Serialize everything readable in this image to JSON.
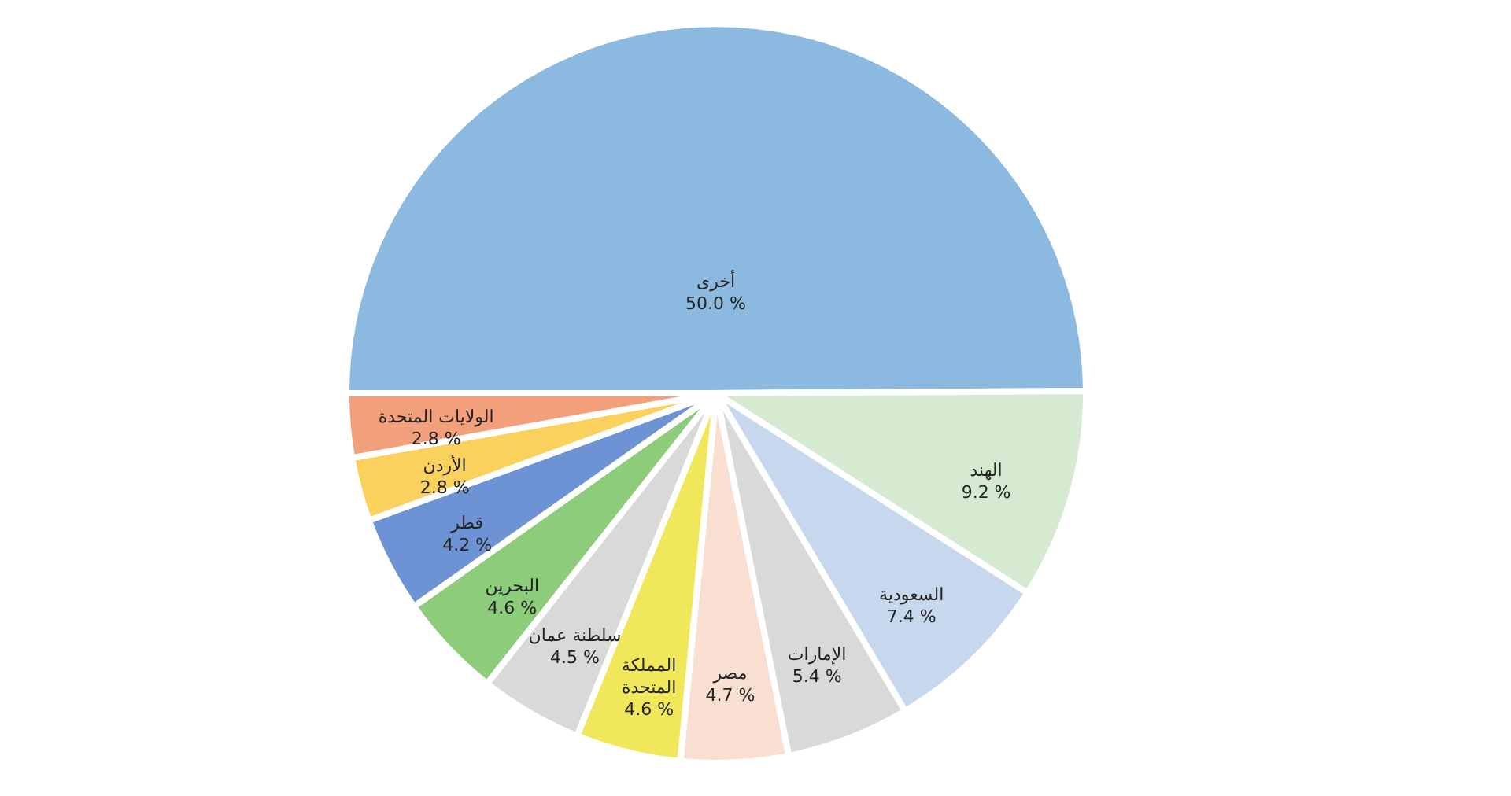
{
  "chart_data": {
    "type": "pie",
    "categories": [
      "أخرى",
      "الهند",
      "السعودية",
      "الإمارات",
      "مصر",
      "المملكة المتحدة",
      "سلطنة عمان",
      "البحرين",
      "قطر",
      "الأردن",
      "الولايات المتحدة"
    ],
    "values": [
      50.0,
      9.2,
      7.4,
      5.4,
      4.7,
      4.6,
      4.5,
      4.6,
      4.2,
      2.8,
      2.8
    ],
    "colors": [
      "#8cb9df",
      "#d5ead0",
      "#c7d7ee",
      "#d9d9d9",
      "#f9dfd2",
      "#f0e85a",
      "#d9d9d9",
      "#8ccc7a",
      "#6d93d4",
      "#fbd15d",
      "#f2a07b"
    ],
    "value_labels": [
      "50.0 %",
      "9.2 %",
      "7.4 %",
      "5.4 %",
      "4.7 %",
      "4.6 %",
      "4.5 %",
      "4.6 %",
      "4.2 %",
      "2.8 %",
      "2.8 %"
    ],
    "legend": false
  }
}
